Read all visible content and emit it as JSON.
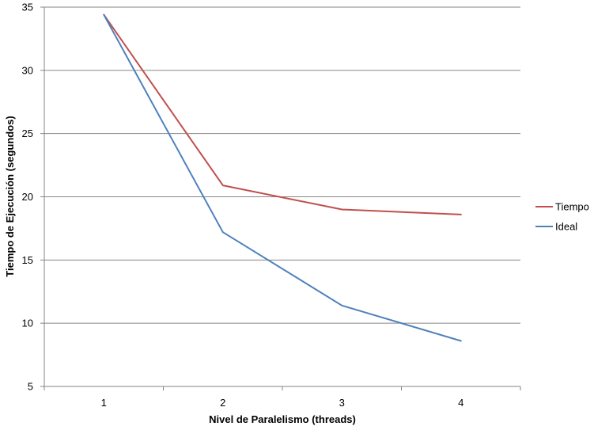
{
  "chart_data": {
    "type": "line",
    "title": "",
    "xlabel": "Nivel de Paralelismo (threads)",
    "ylabel": "Tiempo de Ejecución (segundos)",
    "categories": [
      "1",
      "2",
      "3",
      "4"
    ],
    "ylim": [
      5,
      35
    ],
    "yticks": [
      5,
      10,
      15,
      20,
      25,
      30,
      35
    ],
    "grid": "horizontal",
    "legend_position": "right",
    "series": [
      {
        "name": "Tiempo",
        "color": "#c0504d",
        "values": [
          34.4,
          20.9,
          19.0,
          18.6
        ]
      },
      {
        "name": "Ideal",
        "color": "#4f81bd",
        "values": [
          34.4,
          17.2,
          11.4,
          8.6
        ]
      }
    ]
  }
}
